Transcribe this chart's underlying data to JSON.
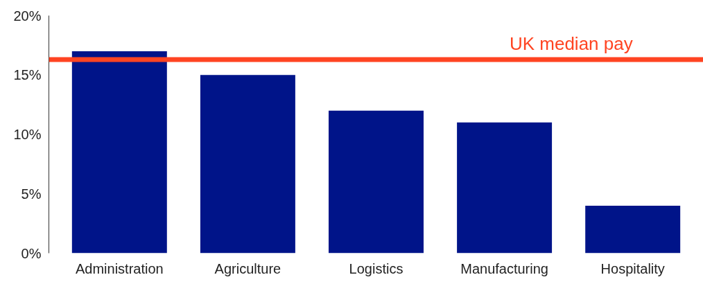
{
  "chart_data": {
    "type": "bar",
    "categories": [
      "Administration",
      "Agriculture",
      "Logistics",
      "Manufacturing",
      "Hospitality"
    ],
    "values": [
      17.0,
      15.0,
      12.0,
      11.0,
      4.0
    ],
    "color": "#001489",
    "ylim": [
      0,
      20
    ],
    "yticks": [
      {
        "value": 0,
        "label": "0%"
      },
      {
        "value": 5,
        "label": "5%"
      },
      {
        "value": 10,
        "label": "10%"
      },
      {
        "value": 15,
        "label": "15%"
      },
      {
        "value": 20,
        "label": "20%"
      }
    ],
    "ref_lines": [
      {
        "axis": "y",
        "value": 16.3,
        "label": "UK median pay",
        "color": "#ff4422"
      }
    ],
    "grid": false
  }
}
